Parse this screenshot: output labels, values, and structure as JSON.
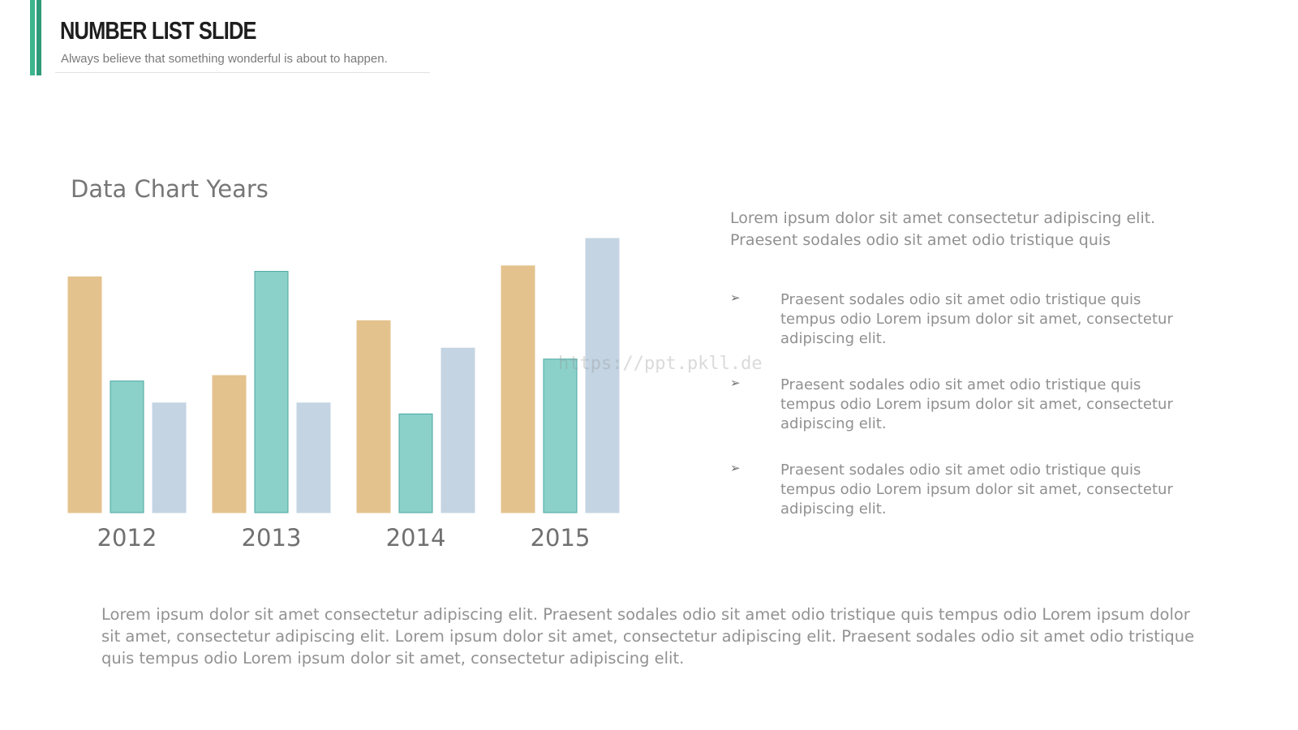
{
  "header": {
    "title": "NUMBER LIST SLIDE",
    "subtitle": "Always believe that something wonderful is about to happen."
  },
  "watermark": "https://ppt.pkll.de",
  "intro_text": "Lorem ipsum dolor sit amet consectetur adipiscing elit. Praesent sodales odio sit amet odio tristique quis",
  "bullets": [
    {
      "marker": "➢",
      "text": "Praesent sodales odio sit amet odio tristique quis tempus odio Lorem ipsum dolor sit amet, consectetur adipiscing elit."
    },
    {
      "marker": "➢",
      "text": "Praesent sodales odio sit amet odio tristique quis tempus odio Lorem ipsum dolor sit amet, consectetur adipiscing elit."
    },
    {
      "marker": "➢",
      "text": "Praesent sodales odio sit amet odio tristique quis tempus odio Lorem ipsum dolor sit amet, consectetur adipiscing elit."
    }
  ],
  "bottom_text": "Lorem ipsum dolor sit amet consectetur adipiscing elit. Praesent sodales odio sit amet odio tristique quis tempus odio Lorem ipsum dolor sit amet, consectetur adipiscing elit. Lorem ipsum dolor sit amet, consectetur adipiscing elit. Praesent sodales odio sit amet odio tristique quis tempus odio Lorem ipsum dolor sit amet, consectetur adipiscing elit.",
  "colors": {
    "accent": "#3db58f",
    "accent_dark": "#2e9c7a",
    "series": [
      "#e4c28d",
      "#8bd1ca",
      "#c4d4e3"
    ],
    "series_stroke": [
      "#e4c28d",
      "#4aa6a0",
      "#c4d4e3"
    ]
  },
  "chart_data": {
    "type": "bar",
    "title": "Data Chart Years",
    "categories": [
      "2012",
      "2013",
      "2014",
      "2015"
    ],
    "series": [
      {
        "values": [
          4.3,
          2.5,
          3.5,
          4.5
        ]
      },
      {
        "values": [
          2.4,
          4.4,
          1.8,
          2.8
        ]
      },
      {
        "values": [
          2.0,
          2.0,
          3.0,
          5.0
        ]
      }
    ],
    "ylim": [
      0,
      5
    ],
    "grid": false,
    "legend": "none"
  }
}
